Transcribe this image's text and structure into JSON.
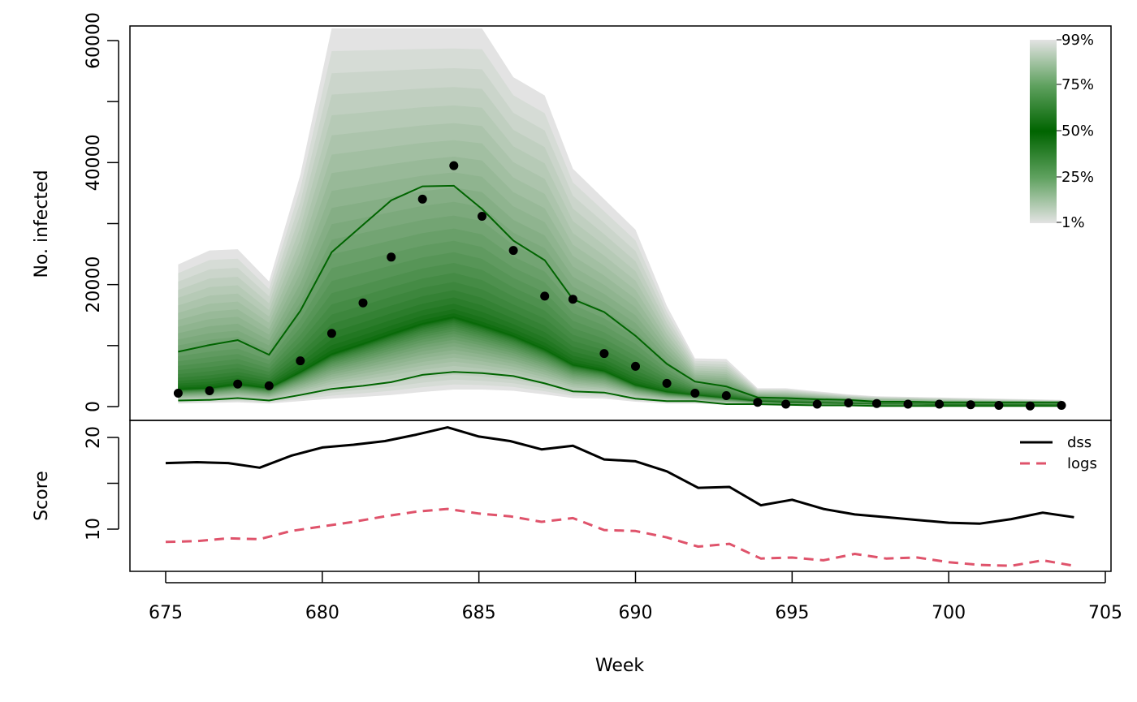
{
  "chart_data": [
    {
      "panel": "fan",
      "type": "area",
      "ylabel": "No. infected",
      "xlim": [
        675,
        705
      ],
      "ylim": [
        0,
        60000
      ],
      "yticks": [
        0,
        20000,
        40000,
        60000
      ],
      "weeks": [
        675.4,
        676.4,
        677.3,
        678.3,
        679.3,
        680.3,
        681.3,
        682.2,
        683.2,
        684.2,
        685.1,
        686.1,
        687.1,
        688.0,
        689.0,
        690.0,
        691.0,
        691.9,
        692.9,
        693.9,
        694.8,
        695.8,
        696.8,
        697.7,
        698.7,
        699.7,
        700.7,
        701.6,
        702.6,
        703.6
      ],
      "observed": [
        2200,
        2600,
        3700,
        3400,
        7500,
        12000,
        17000,
        24500,
        34000,
        39500,
        31200,
        25600,
        18100,
        17600,
        8700,
        6600,
        3800,
        2200,
        1800,
        700,
        400,
        400,
        600,
        500,
        400,
        400,
        300,
        200,
        100,
        200
      ],
      "median": [
        2800,
        3000,
        3600,
        3000,
        5600,
        8500,
        10200,
        11800,
        13500,
        14600,
        13200,
        11500,
        9300,
        6800,
        5800,
        3500,
        2400,
        1900,
        1400,
        900,
        700,
        600,
        500,
        400,
        400,
        300,
        300,
        300,
        300,
        300
      ],
      "quantile_lines": [
        {
          "name": "lower",
          "values": [
            1000,
            1100,
            1400,
            1000,
            1900,
            2900,
            3400,
            4000,
            5200,
            5700,
            5500,
            5000,
            3800,
            2500,
            2300,
            1300,
            900,
            900,
            400,
            400,
            300,
            200,
            200,
            100,
            100,
            100,
            100,
            100,
            100,
            100
          ]
        },
        {
          "name": "upper",
          "values": [
            9000,
            10100,
            10900,
            8500,
            15700,
            25300,
            29800,
            33800,
            36100,
            36200,
            32400,
            27200,
            24000,
            17600,
            15500,
            11600,
            7000,
            4100,
            3300,
            1500,
            1400,
            1200,
            1100,
            800,
            800,
            700,
            700,
            700,
            700,
            700
          ]
        }
      ],
      "max_band": [
        23300,
        25600,
        25800,
        20500,
        38000,
        62000,
        62000,
        62000,
        62000,
        62000,
        62000,
        54000,
        51000,
        39000,
        34000,
        29000,
        16500,
        7900,
        7800,
        3000,
        3000,
        2500,
        2000,
        1700,
        1600,
        1500,
        1400,
        1300,
        1200,
        1100
      ],
      "min_band": [
        500,
        600,
        700,
        500,
        900,
        1300,
        1600,
        1900,
        2400,
        2800,
        2800,
        2600,
        2000,
        1400,
        1300,
        800,
        500,
        500,
        300,
        200,
        100,
        100,
        100,
        100,
        100,
        50,
        50,
        50,
        50,
        50
      ],
      "colorbar": {
        "labels": [
          "99%",
          "75%",
          "50%",
          "25%",
          "1%"
        ],
        "high_color": "#006400",
        "low_color": "#e3e3e3"
      }
    },
    {
      "panel": "scores",
      "type": "line",
      "xlabel": "Week",
      "ylabel": "Score",
      "xlim": [
        675,
        705
      ],
      "ylim": [
        5.8,
        21.2
      ],
      "xticks": [
        675,
        680,
        685,
        690,
        695,
        700,
        705
      ],
      "yticks": [
        10,
        15,
        20
      ],
      "ytick_labels": [
        "10",
        "",
        "20"
      ],
      "legend_position": "top-right",
      "x": [
        675,
        676,
        677,
        678,
        679,
        680,
        681,
        682,
        683,
        684,
        685,
        686,
        687,
        688,
        689,
        690,
        691,
        692,
        693,
        694,
        695,
        696,
        697,
        698,
        699,
        700,
        701,
        702,
        703,
        704
      ],
      "series": [
        {
          "name": "dss",
          "color": "#000000",
          "dash": "solid",
          "values": [
            17.2,
            17.3,
            17.2,
            16.7,
            18.0,
            18.9,
            19.2,
            19.6,
            20.3,
            21.1,
            20.1,
            19.6,
            18.7,
            19.1,
            17.6,
            17.4,
            16.3,
            14.5,
            14.6,
            12.6,
            13.2,
            12.2,
            11.6,
            11.3,
            11.0,
            10.7,
            10.6,
            11.1,
            11.8,
            11.3
          ]
        },
        {
          "name": "logs",
          "color": "#DF536B",
          "dash": "dashed",
          "values": [
            8.6,
            8.7,
            9.0,
            8.9,
            9.8,
            10.3,
            10.8,
            11.4,
            11.9,
            12.2,
            11.7,
            11.4,
            10.8,
            11.2,
            9.9,
            9.8,
            9.1,
            8.1,
            8.4,
            6.8,
            6.9,
            6.6,
            7.3,
            6.8,
            6.9,
            6.4,
            6.1,
            6.0,
            6.6,
            6.0
          ]
        }
      ]
    }
  ]
}
